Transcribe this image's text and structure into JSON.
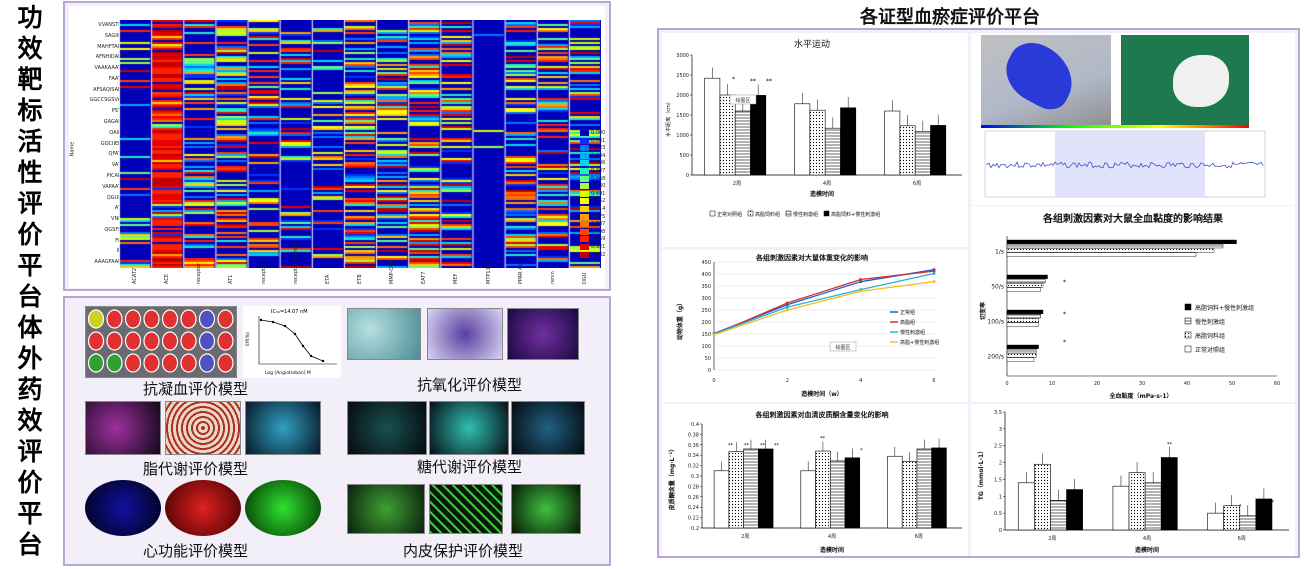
{
  "side_titles": {
    "top": [
      "功",
      "效",
      "靶",
      "标",
      "活",
      "性",
      "评",
      "价",
      "平",
      "台"
    ],
    "bottom": [
      "体",
      "外",
      "药",
      "效",
      "评",
      "价",
      "平",
      "台"
    ]
  },
  "right_title": "各证型血瘀症评价平台",
  "heatmap": {
    "y_axis_title": "Name",
    "row_labels": [
      "VVANSTL",
      "SAGIIL",
      "MAHFTAC",
      "AFNHIDAF",
      "VAAKAAAT",
      "FAAT",
      "AFSAQISAP",
      "GGCCSGSVA",
      "PSY",
      "GAGAL",
      "QAIF",
      "GQCIIEF",
      "QFAT",
      "VAT",
      "PICAP",
      "VAPAAT",
      "QGUL",
      "AT",
      "VNL",
      "QGSFL",
      "FF",
      "IF",
      "AAAGFAAF"
    ],
    "col_labels": [
      "ACAT2",
      "ACE",
      "receptor",
      "AT1",
      "receptor",
      "receptor chomba",
      "ETA",
      "ETB",
      "MMP-COA",
      "EAT7",
      "MEF",
      "MTP11L2",
      "PPAR Alpha",
      "renin",
      "DGU"
    ],
    "legend_values": [
      "0.000",
      "0.061",
      "0.123",
      "0.184",
      "0.246",
      "0.307",
      "0.368",
      "0.430",
      "0.491",
      "0.552",
      "0.614",
      "0.675",
      "0.737",
      "0.798",
      "0.859",
      "0.921",
      "0.982"
    ],
    "legend_colors": [
      "#0000b8",
      "#0030ff",
      "#0070ff",
      "#00a8ff",
      "#00d8f0",
      "#20f0c0",
      "#60ff80",
      "#a0ff40",
      "#d0ff00",
      "#ffff00",
      "#ffd000",
      "#ffa000",
      "#ff7000",
      "#ff4000",
      "#ff2000",
      "#e80000",
      "#c00000"
    ]
  },
  "models": {
    "anticoag": "抗凝血评价模型",
    "antiox": "抗氧化评价模型",
    "lipid": "脂代谢评价模型",
    "glucose": "糖代谢评价模型",
    "cardiac": "心功能评价模型",
    "endo": "内皮保护评价模型",
    "ic50": "IC₅₀=14.07 nM",
    "ic50_x": "Log [Angiotroban] M",
    "ic50_y": "Eff(%)"
  },
  "colors": {
    "accent_border": "#b9a6d4",
    "panel_bg": "#f3eff8",
    "title_blue": "#1f3f8f"
  },
  "chart_data": [
    {
      "type": "bar",
      "title": "水平运动",
      "categories": [
        "2周",
        "4周",
        "6周"
      ],
      "xlabel": "造模时间",
      "ylabel": "水平距离（cm）",
      "ylim": [
        0,
        3000
      ],
      "yticks": [
        "0",
        "500",
        "1000",
        "1500",
        "2000",
        "2500",
        "3000"
      ],
      "legend_tag": "绘图区",
      "series": [
        {
          "name": "正常对照组",
          "values": [
            2420,
            1780,
            1600
          ]
        },
        {
          "name": "高脂饲料组",
          "values": [
            2000,
            1620,
            1230
          ]
        },
        {
          "name": "慢性刺激组",
          "values": [
            1600,
            1170,
            1090
          ]
        },
        {
          "name": "高脂饲料+慢性刺激组",
          "values": [
            1990,
            1680,
            1240
          ]
        }
      ],
      "marks": [
        "*",
        "**",
        "**"
      ]
    },
    {
      "type": "line",
      "title": "各组刺激因素对大鼠体重变化的影响",
      "x": [
        0,
        2,
        4,
        6
      ],
      "xticks": [
        "0",
        "2",
        "4",
        "6"
      ],
      "xlabel": "造模时间（w）",
      "ylabel": "动物体重（g）",
      "ylim": [
        0,
        450
      ],
      "yticks": [
        "0",
        "50",
        "100",
        "150",
        "200",
        "250",
        "300",
        "350",
        "400",
        "450"
      ],
      "legend_tag": "绘图区",
      "series": [
        {
          "name": "正常组",
          "values": [
            152,
            272,
            368,
            418
          ],
          "color": "#1f5fd0"
        },
        {
          "name": "高脂组",
          "values": [
            148,
            279,
            377,
            412
          ],
          "color": "#d03030"
        },
        {
          "name": "慢性刺激组",
          "values": [
            150,
            262,
            335,
            402
          ],
          "color": "#30b0d0"
        },
        {
          "name": "高脂+慢性刺激组",
          "values": [
            147,
            250,
            328,
            368
          ],
          "color": "#f0c020"
        }
      ]
    },
    {
      "type": "bar",
      "title": "各组刺激因素对大鼠全血黏度的影响结果",
      "orientation": "horizontal",
      "categories": [
        "1/s",
        "50/s",
        "100/s",
        "200/s"
      ],
      "xlabel": "全血黏度（mPa·s-1）",
      "ylabel": "切变率",
      "xlim": [
        0,
        60
      ],
      "xticks": [
        "0",
        "10",
        "20",
        "30",
        "40",
        "50",
        "60"
      ],
      "series": [
        {
          "name": "高脂饲料+慢性刺激组",
          "values": [
            51,
            9,
            8,
            7
          ]
        },
        {
          "name": "慢性刺激组",
          "values": [
            48,
            8.5,
            7.5,
            6.5
          ]
        },
        {
          "name": "高脂饲料组",
          "values": [
            46,
            8,
            7,
            6.5
          ]
        },
        {
          "name": "正常对照组",
          "values": [
            42,
            7.5,
            7,
            6
          ]
        }
      ],
      "marks": [
        "*",
        "*",
        "*"
      ]
    },
    {
      "type": "bar",
      "title": "各组刺激因素对血清皮质酮含量变化的影响",
      "categories": [
        "2周",
        "4周",
        "6周"
      ],
      "xlabel": "造模时间",
      "ylabel": "皮质酮含量（mg·L⁻¹）",
      "ylim": [
        0.2,
        0.4
      ],
      "yticks": [
        "0.2",
        "0.22",
        "0.24",
        "0.26",
        "0.28",
        "0.3",
        "0.32",
        "0.34",
        "0.36",
        "0.38",
        "0.4"
      ],
      "series": [
        {
          "name": "正常对照组",
          "values": [
            0.31,
            0.31,
            0.338
          ]
        },
        {
          "name": "高脂饲料组",
          "values": [
            0.347,
            0.348,
            0.328
          ]
        },
        {
          "name": "慢性刺激组",
          "values": [
            0.352,
            0.329,
            0.352
          ]
        },
        {
          "name": "高脂饲料+慢性刺激组",
          "values": [
            0.352,
            0.335,
            0.354
          ]
        }
      ],
      "marks": [
        "**",
        "**",
        "**",
        "**",
        "**",
        "*"
      ]
    },
    {
      "type": "bar",
      "categories": [
        "2周",
        "4周",
        "6周"
      ],
      "xlabel": "造模时间",
      "ylabel": "TG（mmol·L-1）",
      "ylim": [
        0,
        3.5
      ],
      "yticks": [
        "0",
        "0.5",
        "1",
        "1.5",
        "2",
        "2.5",
        "3",
        "3.5"
      ],
      "series": [
        {
          "name": "正常对照组",
          "values": [
            1.4,
            1.3,
            0.5
          ]
        },
        {
          "name": "高脂饲料组",
          "values": [
            1.95,
            1.7,
            0.72
          ]
        },
        {
          "name": "慢性刺激组",
          "values": [
            0.88,
            1.4,
            0.42
          ]
        },
        {
          "name": "高脂饲料+慢性刺激组",
          "values": [
            1.2,
            2.15,
            0.92
          ]
        }
      ],
      "marks": [
        "**",
        "**",
        "*",
        "*",
        "**"
      ]
    }
  ]
}
